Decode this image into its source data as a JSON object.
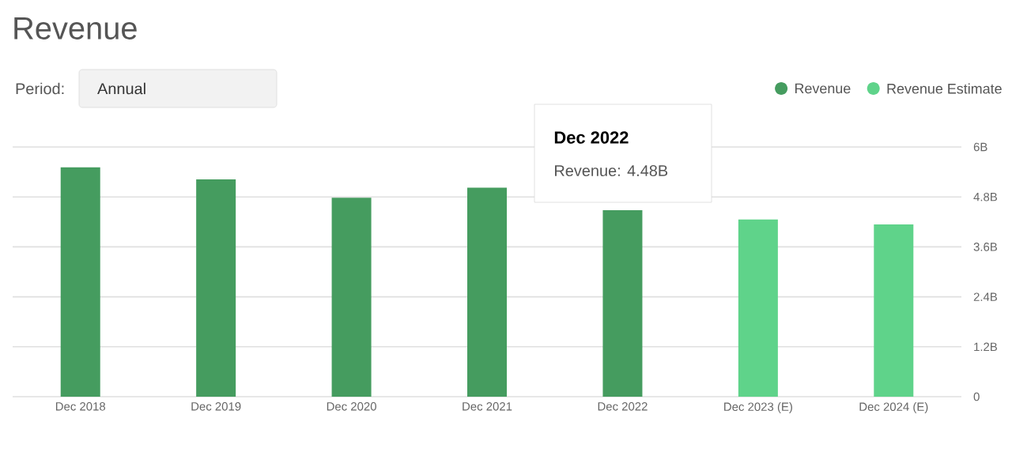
{
  "chart_data": {
    "type": "bar",
    "title": "Revenue",
    "categories": [
      "Dec 2018",
      "Dec 2019",
      "Dec 2020",
      "Dec 2021",
      "Dec 2022",
      "Dec 2023 (E)",
      "Dec 2024 (E)"
    ],
    "series": [
      {
        "name": "Revenue",
        "color": "#459c5f",
        "values": [
          5.51,
          5.22,
          4.78,
          5.02,
          4.48,
          null,
          null
        ]
      },
      {
        "name": "Revenue Estimate",
        "color": "#5fd38a",
        "values": [
          null,
          null,
          null,
          null,
          null,
          4.26,
          4.14
        ]
      }
    ],
    "ylim": [
      0,
      6
    ],
    "yticks": [
      0,
      {
        "value": 1.2,
        "label": "1.2B"
      },
      {
        "value": 2.4,
        "label": "2.4B"
      },
      {
        "value": 3.6,
        "label": "3.6B"
      },
      {
        "value": 4.8,
        "label": "4.8B"
      },
      {
        "value": 6,
        "label": "6B"
      }
    ],
    "grid": "y",
    "legend": "top right",
    "annotations": [
      "Period:",
      "Annual",
      "Dec 2022",
      "Revenue: 4.48B"
    ]
  }
}
